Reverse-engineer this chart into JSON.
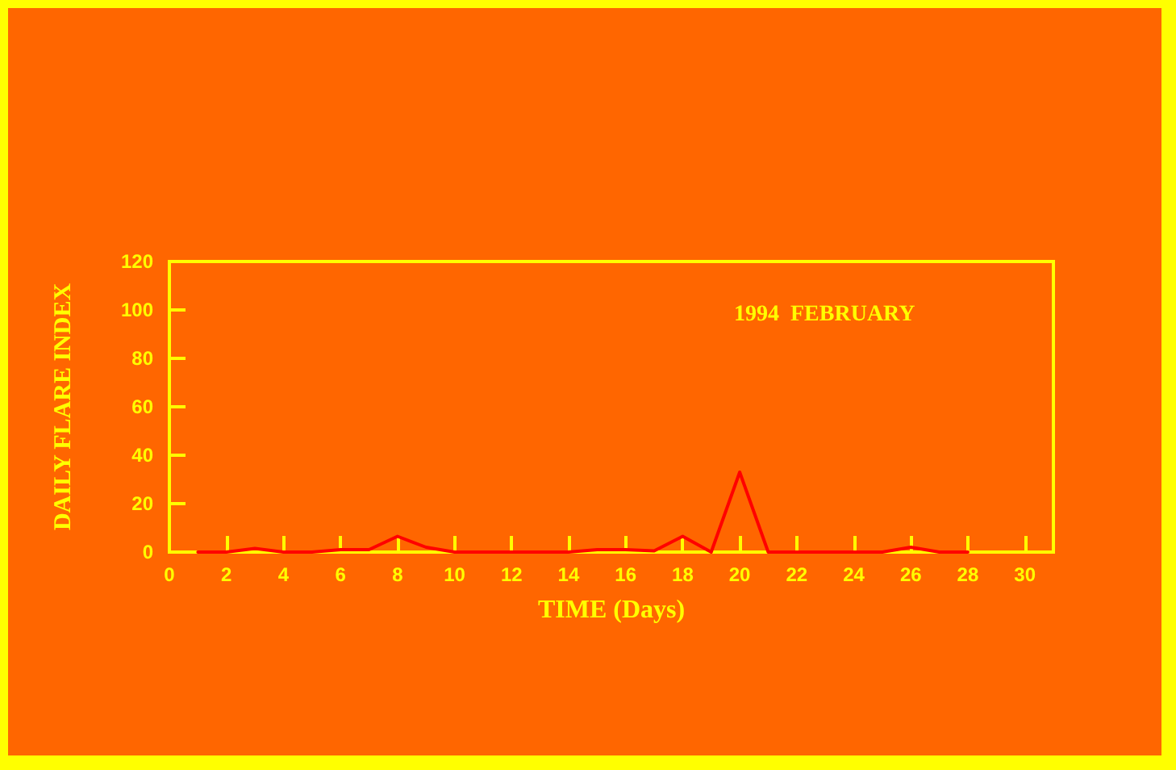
{
  "chart_data": {
    "type": "line",
    "xlabel": "TIME (Days)",
    "ylabel": "DAILY FLARE INDEX",
    "annotations": [
      "1994  FEBRUARY"
    ],
    "x": [
      1,
      2,
      3,
      4,
      5,
      6,
      7,
      8,
      9,
      10,
      11,
      12,
      13,
      14,
      15,
      16,
      17,
      18,
      19,
      20,
      21,
      22,
      23,
      24,
      25,
      26,
      27,
      28
    ],
    "series": [
      {
        "color": "#ff0000",
        "values": [
          0,
          0,
          1.5,
          0,
          0,
          1,
          1,
          6.5,
          2,
          0,
          0,
          0,
          0,
          0,
          1,
          1,
          0.5,
          6.5,
          0,
          33,
          0,
          0,
          0,
          0,
          0,
          2,
          0,
          0
        ]
      }
    ],
    "xlim": [
      0,
      31
    ],
    "xticks": [
      0,
      2,
      4,
      6,
      8,
      10,
      12,
      14,
      16,
      18,
      20,
      22,
      24,
      26,
      28,
      30
    ],
    "ylim": [
      0,
      120
    ],
    "yticks": [
      0,
      20,
      40,
      60,
      80,
      100,
      120
    ],
    "grid": false,
    "marker": "none",
    "line_style": "solid"
  }
}
